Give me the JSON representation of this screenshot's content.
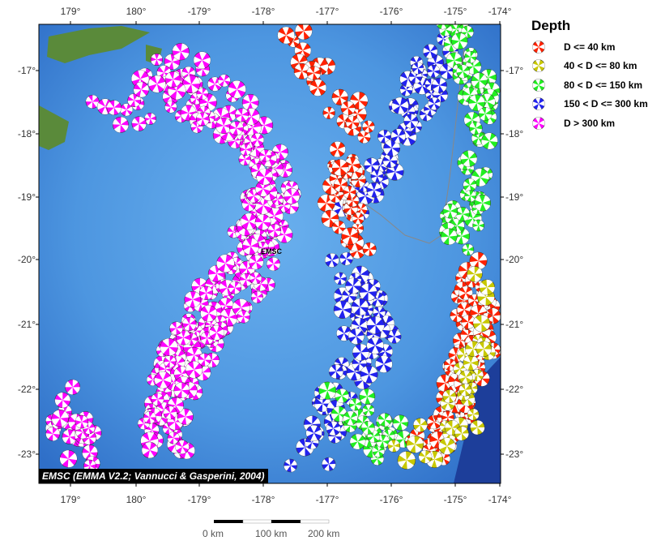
{
  "map": {
    "lon_labels": [
      "179°",
      "180°",
      "-179°",
      "-178°",
      "-177°",
      "-176°",
      "-175°",
      "-174°"
    ],
    "lat_labels": [
      "-17°",
      "-18°",
      "-19°",
      "-20°",
      "-21°",
      "-22°",
      "-23°"
    ],
    "station_label": "EMSC",
    "credit": "EMSC (EMMA V2.2; Vannucci & Gasperini, 2004)"
  },
  "legend": {
    "title": "Depth",
    "items": [
      {
        "label": "D <= 40 km",
        "color": "#ff2200"
      },
      {
        "label": "40 < D <= 80 km",
        "color": "#c8c800"
      },
      {
        "label": "80 < D <= 150 km",
        "color": "#22ee22"
      },
      {
        "label": "150 < D <= 300 km",
        "color": "#2222ee"
      },
      {
        "label": "D > 300 km",
        "color": "#ff00ff"
      }
    ]
  },
  "scale_bar": {
    "labels": [
      "0 km",
      "100 km",
      "200 km"
    ]
  }
}
